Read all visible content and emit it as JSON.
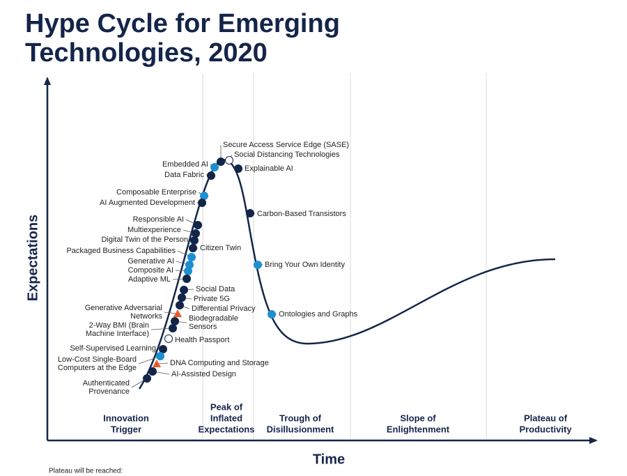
{
  "title": [
    "Hype Cycle for Emerging",
    "Technologies, 2020"
  ],
  "y_axis_label": "Expectations",
  "x_axis_label": "Time",
  "footer": "Plateau will be reached:",
  "phases": [
    {
      "label": [
        "Innovation",
        "Trigger"
      ]
    },
    {
      "label": [
        "Peak of",
        "Inflated",
        "Expectations"
      ]
    },
    {
      "label": [
        "Trough of",
        "Disillusionment"
      ]
    },
    {
      "label": [
        "Slope of",
        "Enlightenment"
      ]
    },
    {
      "label": [
        "Plateau of",
        "Productivity"
      ]
    }
  ],
  "technologies": [
    {
      "label": [
        "Secure Access Service Edge (SASE)"
      ],
      "marker": "circle",
      "color": "#14254a"
    },
    {
      "label": [
        "Social Distancing Technologies"
      ],
      "marker": "circle",
      "color": "#ffffff"
    },
    {
      "label": [
        "Explainable AI"
      ],
      "marker": "circle",
      "color": "#14254a"
    },
    {
      "label": [
        "Embedded AI"
      ],
      "marker": "circle",
      "color": "#1c8fd0"
    },
    {
      "label": [
        "Data Fabric"
      ],
      "marker": "circle",
      "color": "#14254a"
    },
    {
      "label": [
        "Composable Enterprise"
      ],
      "marker": "circle",
      "color": "#1c8fd0"
    },
    {
      "label": [
        "AI Augmented Development"
      ],
      "marker": "circle",
      "color": "#14254a"
    },
    {
      "label": [
        "Carbon-Based Transistors"
      ],
      "marker": "circle",
      "color": "#14254a"
    },
    {
      "label": [
        "Responsible AI"
      ],
      "marker": "circle",
      "color": "#14254a"
    },
    {
      "label": [
        "Multiexperience"
      ],
      "marker": "circle",
      "color": "#14254a"
    },
    {
      "label": [
        "Digital Twin of the Person"
      ],
      "marker": "circle",
      "color": "#14254a"
    },
    {
      "label": [
        "Citizen Twin"
      ],
      "marker": "circle",
      "color": "#14254a"
    },
    {
      "label": [
        "Packaged Business Capabilities"
      ],
      "marker": "circle",
      "color": "#1c8fd0"
    },
    {
      "label": [
        "Generative AI"
      ],
      "marker": "circle",
      "color": "#1c8fd0"
    },
    {
      "label": [
        "Composite AI"
      ],
      "marker": "circle",
      "color": "#1c8fd0"
    },
    {
      "label": [
        "Adaptive ML"
      ],
      "marker": "circle",
      "color": "#14254a"
    },
    {
      "label": [
        "Bring Your Own Identity"
      ],
      "marker": "circle",
      "color": "#1c8fd0"
    },
    {
      "label": [
        "Social Data"
      ],
      "marker": "circle",
      "color": "#14254a"
    },
    {
      "label": [
        "Private 5G"
      ],
      "marker": "circle",
      "color": "#14254a"
    },
    {
      "label": [
        "Differential Privacy"
      ],
      "marker": "circle",
      "color": "#14254a"
    },
    {
      "label": [
        "Generative Adversarial",
        "Networks"
      ],
      "marker": "triangle",
      "color": "#e8582a"
    },
    {
      "label": [
        "Biodegradable",
        "Sensors"
      ],
      "marker": "circle",
      "color": "#14254a"
    },
    {
      "label": [
        "Ontologies and Graphs"
      ],
      "marker": "circle",
      "color": "#1c8fd0"
    },
    {
      "label": [
        "2-Way BMI (Brain",
        "Machine Interface)"
      ],
      "marker": "circle",
      "color": "#14254a"
    },
    {
      "label": [
        "Health Passport"
      ],
      "marker": "circle",
      "color": "#ffffff"
    },
    {
      "label": [
        "Self-Supervised Learning"
      ],
      "marker": "circle",
      "color": "#14254a"
    },
    {
      "label": [
        "Low-Cost Single-Board",
        "Computers at the Edge"
      ],
      "marker": "circle",
      "color": "#1c8fd0"
    },
    {
      "label": [
        "DNA Computing and Storage"
      ],
      "marker": "triangle",
      "color": "#e8582a"
    },
    {
      "label": [
        "AI-Assisted Design"
      ],
      "marker": "circle",
      "color": "#14254a"
    },
    {
      "label": [
        "Authenticated",
        "Provenance"
      ],
      "marker": "circle",
      "color": "#14254a"
    }
  ]
}
